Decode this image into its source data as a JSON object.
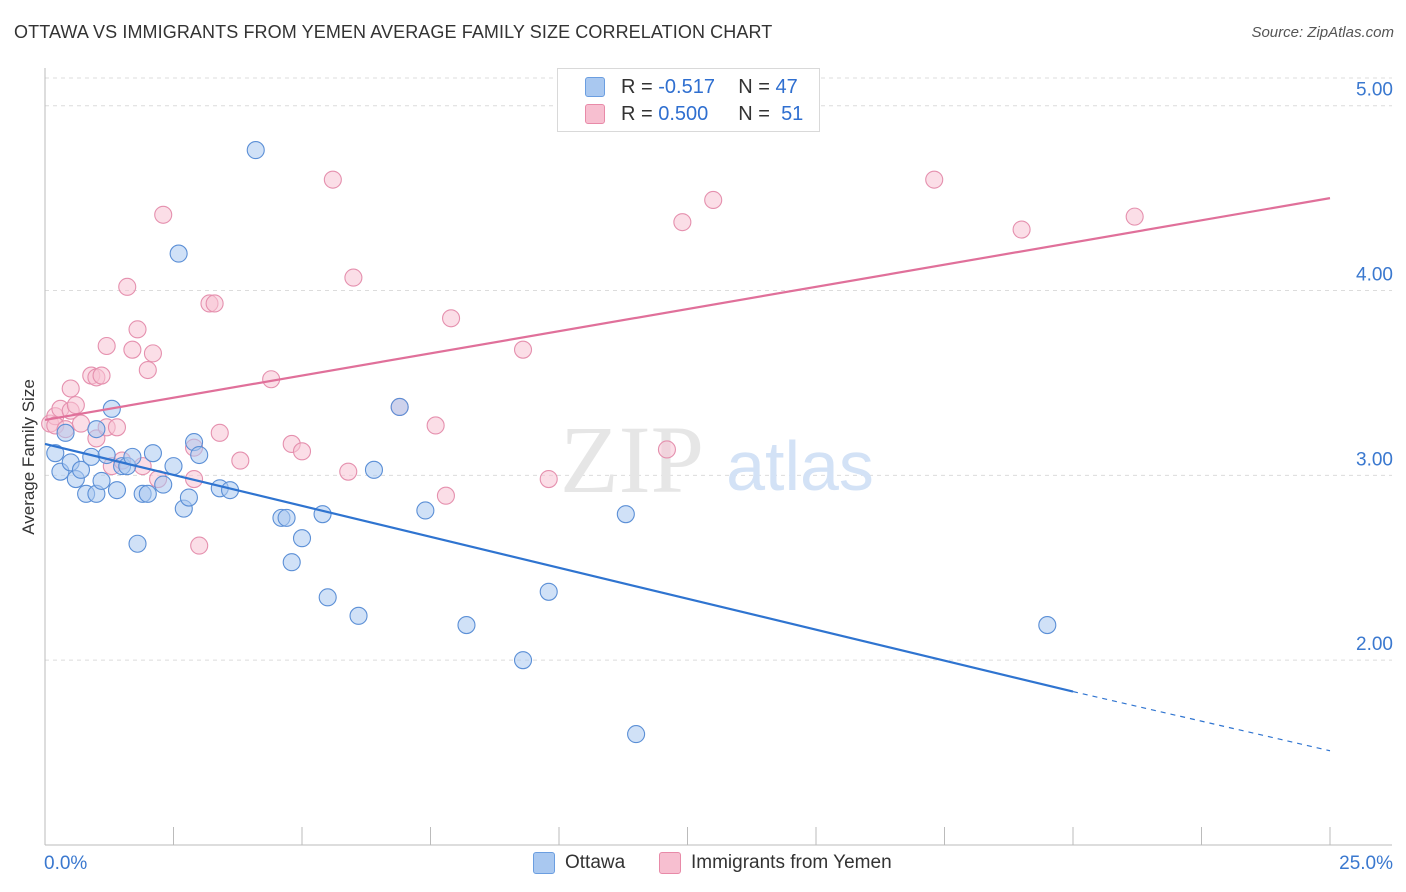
{
  "title": "OTTAWA VS IMMIGRANTS FROM YEMEN AVERAGE FAMILY SIZE CORRELATION CHART",
  "source": "Source: ZipAtlas.com",
  "watermark": {
    "zip": "ZIP",
    "atlas": "atlas"
  },
  "legend": {
    "r_label": "R =",
    "n_label": "N =",
    "rows": [
      {
        "r": "-0.517",
        "n": "47",
        "color": "#a9c8f0",
        "border": "#6b9ee0"
      },
      {
        "r": "0.500",
        "n": "51",
        "color": "#f7bfd0",
        "border": "#e88aa8"
      }
    ]
  },
  "bottom_legend": [
    "Ottawa",
    "Immigrants from Yemen"
  ],
  "colors": {
    "blue_fill": "#aac9f0",
    "blue_stroke": "#5b8fd6",
    "blue_line": "#2f74d0",
    "pink_fill": "#f7c3d3",
    "pink_stroke": "#e590ae",
    "pink_line": "#e0709a",
    "tick_text": "#3a78cf",
    "grid": "#dcdcdc"
  },
  "chart_data": {
    "type": "scatter",
    "title": "OTTAWA VS IMMIGRANTS FROM YEMEN AVERAGE FAMILY SIZE CORRELATION CHART",
    "xlabel": "",
    "ylabel": "Average Family Size",
    "xlim": [
      0,
      25
    ],
    "ylim": [
      1.0,
      5.15
    ],
    "x_tick_labels": [
      {
        "v": 0,
        "label": "0.0%"
      },
      {
        "v": 25,
        "label": "25.0%"
      }
    ],
    "y_ticks": [
      {
        "v": 5.0,
        "label": "5.00"
      },
      {
        "v": 4.0,
        "label": "4.00"
      },
      {
        "v": 3.0,
        "label": "3.00"
      },
      {
        "v": 2.0,
        "label": "2.00"
      }
    ],
    "grid": true,
    "legend_position": "top-center",
    "series": [
      {
        "name": "Ottawa",
        "r": -0.517,
        "n": 47,
        "trend": {
          "x0": 0,
          "y0": 3.17,
          "x1": 20,
          "y1": 1.83,
          "dash_to_x": 25,
          "dash_to_y": 1.51
        },
        "points": [
          [
            0.2,
            3.12
          ],
          [
            0.3,
            3.02
          ],
          [
            0.4,
            3.23
          ],
          [
            0.5,
            3.07
          ],
          [
            0.6,
            2.98
          ],
          [
            0.7,
            3.03
          ],
          [
            0.8,
            2.9
          ],
          [
            0.9,
            3.1
          ],
          [
            1.0,
            3.25
          ],
          [
            1.0,
            2.9
          ],
          [
            1.1,
            2.97
          ],
          [
            1.2,
            3.11
          ],
          [
            1.3,
            3.36
          ],
          [
            1.4,
            2.92
          ],
          [
            1.5,
            3.05
          ],
          [
            1.6,
            3.05
          ],
          [
            1.7,
            3.1
          ],
          [
            1.8,
            2.63
          ],
          [
            1.9,
            2.9
          ],
          [
            2.0,
            2.9
          ],
          [
            2.1,
            3.12
          ],
          [
            2.3,
            2.95
          ],
          [
            2.5,
            3.05
          ],
          [
            2.7,
            2.82
          ],
          [
            2.8,
            2.88
          ],
          [
            2.9,
            3.18
          ],
          [
            3.0,
            3.11
          ],
          [
            3.4,
            2.93
          ],
          [
            3.6,
            2.92
          ],
          [
            4.1,
            4.76
          ],
          [
            4.6,
            2.77
          ],
          [
            4.7,
            2.77
          ],
          [
            4.8,
            2.53
          ],
          [
            5.0,
            2.66
          ],
          [
            5.4,
            2.79
          ],
          [
            5.5,
            2.34
          ],
          [
            6.1,
            2.24
          ],
          [
            6.4,
            3.03
          ],
          [
            6.9,
            3.37
          ],
          [
            7.4,
            2.81
          ],
          [
            8.2,
            2.19
          ],
          [
            9.3,
            2.0
          ],
          [
            9.8,
            2.37
          ],
          [
            11.3,
            2.79
          ],
          [
            11.5,
            1.6
          ],
          [
            19.5,
            2.19
          ],
          [
            2.6,
            4.2
          ]
        ]
      },
      {
        "name": "Immigrants from Yemen",
        "r": 0.5,
        "n": 51,
        "trend": {
          "x0": 0,
          "y0": 3.3,
          "x1": 25,
          "y1": 4.5
        },
        "points": [
          [
            0.1,
            3.28
          ],
          [
            0.2,
            3.32
          ],
          [
            0.2,
            3.27
          ],
          [
            0.3,
            3.36
          ],
          [
            0.4,
            3.25
          ],
          [
            0.5,
            3.47
          ],
          [
            0.5,
            3.35
          ],
          [
            0.6,
            3.38
          ],
          [
            0.7,
            3.28
          ],
          [
            0.9,
            3.54
          ],
          [
            1.0,
            3.53
          ],
          [
            1.0,
            3.2
          ],
          [
            1.1,
            3.54
          ],
          [
            1.2,
            3.26
          ],
          [
            1.2,
            3.7
          ],
          [
            1.3,
            3.05
          ],
          [
            1.4,
            3.26
          ],
          [
            1.5,
            3.08
          ],
          [
            1.6,
            4.02
          ],
          [
            1.7,
            3.68
          ],
          [
            1.8,
            3.79
          ],
          [
            1.9,
            3.05
          ],
          [
            2.0,
            3.57
          ],
          [
            2.1,
            3.66
          ],
          [
            2.2,
            2.98
          ],
          [
            2.3,
            4.41
          ],
          [
            2.9,
            3.15
          ],
          [
            2.9,
            2.98
          ],
          [
            3.0,
            2.62
          ],
          [
            3.2,
            3.93
          ],
          [
            3.3,
            3.93
          ],
          [
            3.4,
            3.23
          ],
          [
            3.8,
            3.08
          ],
          [
            4.4,
            3.52
          ],
          [
            4.8,
            3.17
          ],
          [
            5.0,
            3.13
          ],
          [
            5.6,
            4.6
          ],
          [
            5.9,
            3.02
          ],
          [
            6.0,
            4.07
          ],
          [
            6.9,
            3.37
          ],
          [
            7.6,
            3.27
          ],
          [
            7.8,
            2.89
          ],
          [
            7.9,
            3.85
          ],
          [
            9.3,
            3.68
          ],
          [
            9.8,
            2.98
          ],
          [
            12.1,
            3.14
          ],
          [
            12.4,
            4.37
          ],
          [
            13.0,
            4.49
          ],
          [
            17.3,
            4.6
          ],
          [
            19.0,
            4.33
          ],
          [
            21.2,
            4.4
          ]
        ]
      }
    ]
  }
}
